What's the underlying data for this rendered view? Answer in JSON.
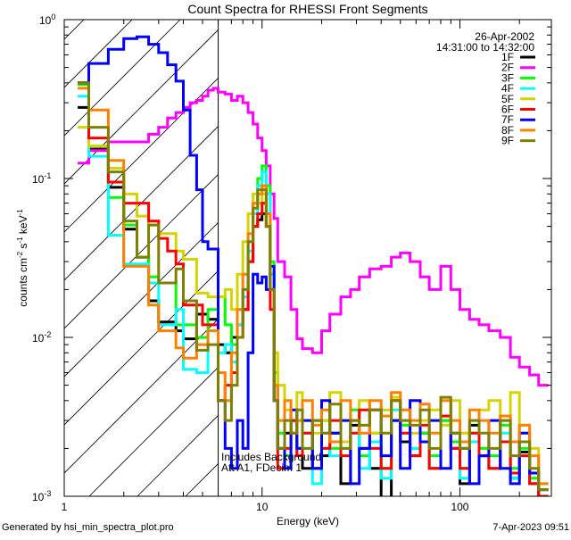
{
  "chart_data": {
    "type": "line",
    "title": "Count Spectra for RHESSI Front Segments",
    "xlabel": "Energy (keV)",
    "ylabel": {
      "parts": [
        "counts cm",
        "-2",
        " s",
        "-1",
        " keV",
        "-1"
      ]
    },
    "xscale": "log",
    "yscale": "log",
    "xlim": [
      1,
      290
    ],
    "ylim": [
      0.001,
      1
    ],
    "x_ticks": [
      {
        "value": 1,
        "label": "1"
      },
      {
        "value": 10,
        "label": "10"
      },
      {
        "value": 100,
        "label": "100"
      }
    ],
    "y_ticks": [
      {
        "value": 1,
        "base": "10",
        "exp": "0"
      },
      {
        "value": 0.1,
        "base": "10",
        "exp": "-1"
      },
      {
        "value": 0.01,
        "base": "10",
        "exp": "-2"
      },
      {
        "value": 0.001,
        "base": "10",
        "exp": "-3"
      }
    ],
    "hatched_region_kev": [
      1,
      6
    ],
    "background_marker_kev": 6,
    "date": "26-Apr-2002",
    "time_range": "14:31:00 to 14:32:00",
    "annotations": [
      "Includes Background",
      "Att A1, FDecim 1"
    ],
    "legend_position": "top-right",
    "energy_bin_edges_kev": [
      1.17,
      1.33,
      1.67,
      2.0,
      2.33,
      2.67,
      3.0,
      3.33,
      3.67,
      4.0,
      4.33,
      4.67,
      5.0,
      5.33,
      5.67,
      6.0,
      6.5,
      7,
      7.5,
      8,
      8.5,
      9,
      9.5,
      10,
      10.5,
      11,
      11.5,
      12,
      13,
      14,
      15,
      16,
      18,
      20,
      22,
      25,
      28,
      31,
      35,
      40,
      45,
      50,
      56,
      63,
      70,
      80,
      90,
      100,
      112,
      125,
      140,
      160,
      180,
      200,
      225,
      250,
      280
    ],
    "series": [
      {
        "name": "1F",
        "color": "#000000",
        "values": [
          0.28,
          0.153,
          0.088,
          0.048,
          0.032,
          0.017,
          0.0125,
          0.0125,
          0.011,
          0.0098,
          0.0098,
          0.014,
          0.014,
          0.013,
          0.013,
          0.009,
          0.008,
          0.01,
          0.012,
          0.015,
          0.03,
          0.05,
          0.055,
          0.06,
          0.05,
          0.02,
          0.005,
          0.002,
          0.0025,
          0.003,
          0.002,
          0.0015,
          0.003,
          0.0018,
          0.0025,
          0.0012,
          0.0028,
          0.002,
          0.0015,
          0.0009,
          0.003,
          0.0022,
          0.0018,
          0.0025,
          0.0015,
          0.003,
          0.002,
          0.0012,
          0.0028,
          0.0018,
          0.0015,
          0.0022,
          0.0013,
          0.0019,
          0.0012,
          0.001
        ]
      },
      {
        "name": "2F",
        "color": "#ff00ff",
        "values": [
          0.125,
          0.15,
          0.17,
          0.17,
          0.17,
          0.19,
          0.21,
          0.24,
          0.26,
          0.28,
          0.3,
          0.31,
          0.33,
          0.36,
          0.37,
          0.35,
          0.34,
          0.31,
          0.33,
          0.3,
          0.26,
          0.22,
          0.18,
          0.15,
          0.12,
          0.08,
          0.056,
          0.03,
          0.024,
          0.015,
          0.0098,
          0.0085,
          0.008,
          0.011,
          0.014,
          0.018,
          0.02,
          0.024,
          0.027,
          0.028,
          0.032,
          0.034,
          0.03,
          0.024,
          0.02,
          0.028,
          0.02,
          0.015,
          0.013,
          0.012,
          0.011,
          0.01,
          0.0075,
          0.0065,
          0.0058,
          0.005
        ]
      },
      {
        "name": "3F",
        "color": "#00ff00",
        "values": [
          0.39,
          0.16,
          0.076,
          0.051,
          0.032,
          0.024,
          0.022,
          0.022,
          0.012,
          0.012,
          0.012,
          0.01,
          0.01,
          0.015,
          0.015,
          0.018,
          0.012,
          0.009,
          0.015,
          0.02,
          0.04,
          0.07,
          0.1,
          0.12,
          0.09,
          0.03,
          0.006,
          0.0025,
          0.0018,
          0.003,
          0.002,
          0.0025,
          0.0015,
          0.003,
          0.002,
          0.0022,
          0.0035,
          0.0018,
          0.0025,
          0.0015,
          0.004,
          0.0028,
          0.002,
          0.0025,
          0.0018,
          0.003,
          0.0022,
          0.0015,
          0.0025,
          0.002,
          0.0018,
          0.0028,
          0.0015,
          0.002,
          0.0013,
          0.0011
        ]
      },
      {
        "name": "4F",
        "color": "#00ffff",
        "values": [
          0.33,
          0.138,
          0.044,
          0.029,
          0.029,
          0.022,
          0.012,
          0.012,
          0.015,
          0.0063,
          0.0063,
          0.006,
          0.006,
          0.011,
          0.011,
          0.008,
          0.009,
          0.007,
          0.012,
          0.018,
          0.035,
          0.06,
          0.09,
          0.11,
          0.08,
          0.025,
          0.005,
          0.002,
          0.0015,
          0.0025,
          0.0018,
          0.002,
          0.0012,
          0.0025,
          0.0018,
          0.002,
          0.003,
          0.0015,
          0.0022,
          0.0013,
          0.0035,
          0.0025,
          0.002,
          0.0022,
          0.0015,
          0.0028,
          0.002,
          0.0013,
          0.0022,
          0.0018,
          0.0015,
          0.0025,
          0.0013,
          0.0018,
          0.0012,
          0.0011
        ]
      },
      {
        "name": "5F",
        "color": "#d4d400",
        "values": [
          0.21,
          0.16,
          0.116,
          0.08,
          0.058,
          0.051,
          0.045,
          0.045,
          0.035,
          0.031,
          0.031,
          0.019,
          0.019,
          0.018,
          0.018,
          0.018,
          0.02,
          0.015,
          0.025,
          0.04,
          0.06,
          0.08,
          0.07,
          0.08,
          0.05,
          0.02,
          0.008,
          0.005,
          0.0035,
          0.003,
          0.0045,
          0.003,
          0.0025,
          0.003,
          0.0045,
          0.0022,
          0.003,
          0.004,
          0.0025,
          0.0035,
          0.0042,
          0.003,
          0.0025,
          0.003,
          0.0035,
          0.0028,
          0.004,
          0.0025,
          0.003,
          0.0035,
          0.004,
          0.003,
          0.0045,
          0.0025,
          0.002,
          0.0012
        ]
      },
      {
        "name": "6F",
        "color": "#ff0000",
        "values": [
          0.4,
          0.18,
          0.095,
          0.07,
          0.07,
          0.054,
          0.042,
          0.035,
          0.029,
          0.016,
          0.016,
          0.016,
          0.012,
          0.012,
          0.012,
          0.004,
          0.005,
          0.006,
          0.01,
          0.015,
          0.03,
          0.05,
          0.06,
          0.07,
          0.05,
          0.015,
          0.004,
          0.0015,
          0.002,
          0.003,
          0.0018,
          0.0025,
          0.0015,
          0.002,
          0.003,
          0.0018,
          0.0025,
          0.0035,
          0.002,
          0.0015,
          0.004,
          0.0025,
          0.0018,
          0.0028,
          0.0015,
          0.0032,
          0.002,
          0.0015,
          0.0025,
          0.0018,
          0.0015,
          0.0022,
          0.0014,
          0.0018,
          0.0012,
          0.001
        ]
      },
      {
        "name": "7F",
        "color": "#0000ff",
        "values": [
          0.4,
          0.53,
          0.65,
          0.76,
          0.78,
          0.7,
          0.62,
          0.52,
          0.41,
          0.27,
          0.14,
          0.085,
          0.04,
          0.036,
          0.036,
          0.004,
          0.002,
          0.0015,
          0.003,
          0.002,
          0.008,
          0.025,
          0.022,
          0.024,
          0.02,
          0.028,
          0.004,
          0.002,
          0.0015,
          0.0035,
          0.002,
          0.003,
          0.0015,
          0.004,
          0.0025,
          0.003,
          0.0012,
          0.002,
          0.0035,
          0.0018,
          0.003,
          0.0015,
          0.004,
          0.0022,
          0.003,
          0.0015,
          0.0025,
          0.002,
          0.0012,
          0.0018,
          0.003,
          0.0015,
          0.0012,
          0.0025,
          0.0014,
          0.0011
        ]
      },
      {
        "name": "8F",
        "color": "#ff8000",
        "values": [
          0.37,
          0.27,
          0.13,
          0.028,
          0.028,
          0.016,
          0.011,
          0.011,
          0.0086,
          0.0074,
          0.0074,
          0.009,
          0.009,
          0.011,
          0.011,
          0.006,
          0.004,
          0.008,
          0.015,
          0.025,
          0.045,
          0.07,
          0.08,
          0.09,
          0.06,
          0.02,
          0.005,
          0.003,
          0.004,
          0.0025,
          0.003,
          0.004,
          0.0028,
          0.0035,
          0.0022,
          0.004,
          0.003,
          0.0025,
          0.004,
          0.0032,
          0.0045,
          0.0035,
          0.003,
          0.0038,
          0.0025,
          0.004,
          0.003,
          0.0022,
          0.0035,
          0.003,
          0.0025,
          0.0032,
          0.0022,
          0.0028,
          0.0018,
          0.0012
        ]
      },
      {
        "name": "9F",
        "color": "#808000",
        "values": [
          0.4,
          0.21,
          0.11,
          0.054,
          0.032,
          0.051,
          0.022,
          0.022,
          0.027,
          0.017,
          0.017,
          0.0083,
          0.0083,
          0.009,
          0.009,
          0.004,
          0.003,
          0.005,
          0.01,
          0.02,
          0.04,
          0.065,
          0.085,
          0.085,
          0.05,
          0.02,
          0.004,
          0.002,
          0.003,
          0.0025,
          0.0035,
          0.002,
          0.003,
          0.0025,
          0.0038,
          0.002,
          0.003,
          0.0028,
          0.0035,
          0.0025,
          0.004,
          0.003,
          0.0028,
          0.0035,
          0.002,
          0.0042,
          0.0025,
          0.002,
          0.003,
          0.0025,
          0.002,
          0.003,
          0.0018,
          0.0022,
          0.0015,
          0.0011
        ]
      }
    ]
  },
  "footer": {
    "generated_by": "Generated by hsi_min_spectra_plot.pro",
    "timestamp": "7-Apr-2023 09:51"
  }
}
